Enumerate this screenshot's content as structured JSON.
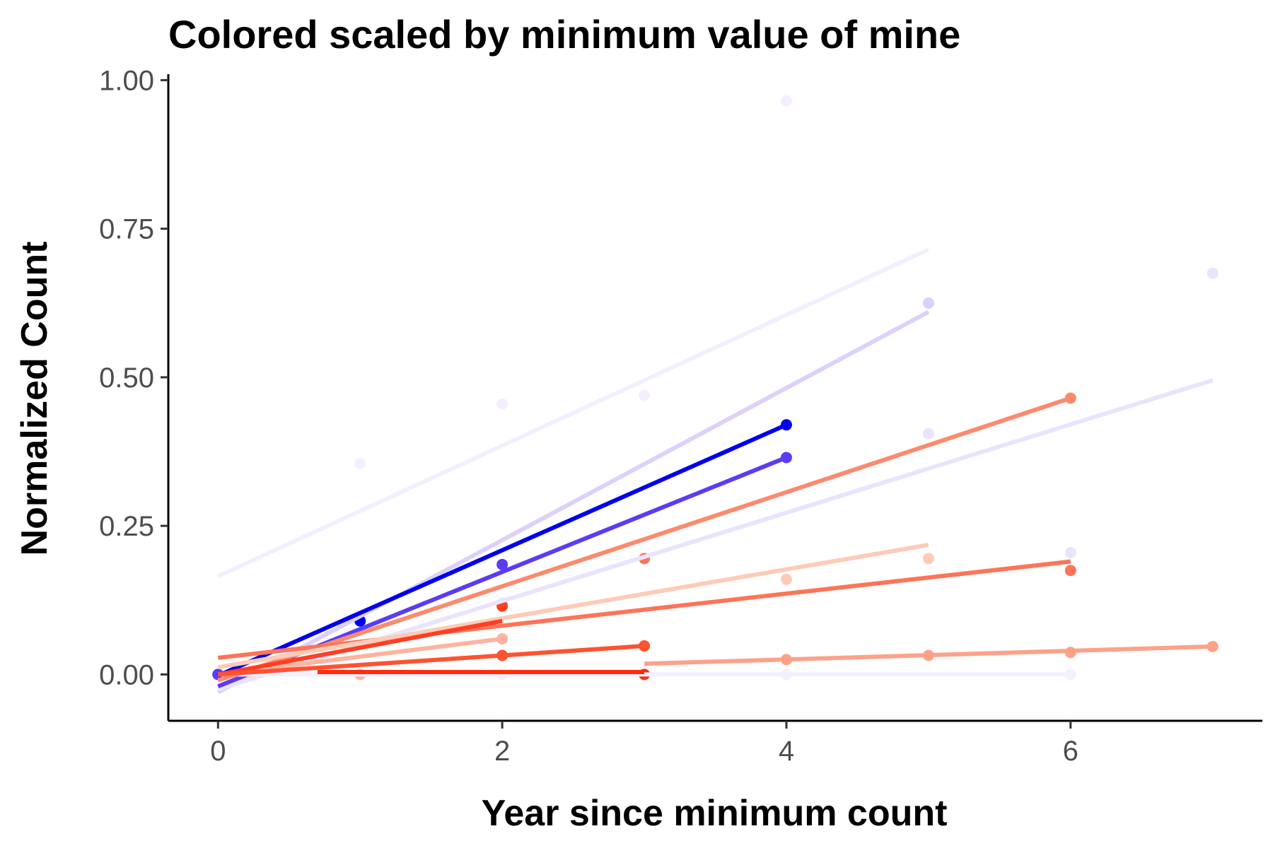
{
  "chart_data": {
    "type": "scatter",
    "title": "Colored scaled by minimum value of mine",
    "xlabel": "Year since minimum count",
    "ylabel": "Normalized Count",
    "xlim": [
      -0.35,
      7.35
    ],
    "ylim": [
      -0.078,
      1.01
    ],
    "x_ticks": [
      0,
      2,
      4,
      6
    ],
    "x_tick_labels": [
      "0",
      "2",
      "4",
      "6"
    ],
    "y_ticks": [
      0,
      0.25,
      0.5,
      0.75,
      1
    ],
    "y_tick_labels": [
      "0.00",
      "0.25",
      "0.50",
      "0.75",
      "1.00"
    ],
    "grid": false,
    "legend": "none",
    "series": [
      {
        "color": "#f4eeff",
        "points": [
          [
            1,
            0.355
          ],
          [
            2,
            0.455
          ],
          [
            3,
            0.47
          ],
          [
            4,
            0.965
          ]
        ],
        "fit": [
          [
            0,
            0.165
          ],
          [
            5,
            0.715
          ]
        ]
      },
      {
        "color": "#ddd0fb",
        "points": [
          [
            5,
            0.625
          ]
        ],
        "fit": [
          [
            0,
            -0.03
          ],
          [
            5,
            0.61
          ]
        ]
      },
      {
        "color": "#ebe3fd",
        "points": [
          [
            2,
            0.12
          ],
          [
            5,
            0.405
          ],
          [
            6,
            0.205
          ],
          [
            7,
            0.675
          ]
        ],
        "fit": [
          [
            0,
            -0.025
          ],
          [
            7,
            0.495
          ]
        ]
      },
      {
        "color": "#0000ee",
        "points": [
          [
            0,
            0.0
          ],
          [
            1,
            0.09
          ],
          [
            4,
            0.42
          ]
        ],
        "fit": [
          [
            0,
            -0.002
          ],
          [
            4,
            0.42
          ]
        ]
      },
      {
        "color": "#5b3cf4",
        "points": [
          [
            0,
            0.0
          ],
          [
            2,
            0.185
          ],
          [
            4,
            0.365
          ]
        ],
        "fit": [
          [
            0,
            -0.02
          ],
          [
            4,
            0.365
          ]
        ]
      },
      {
        "color": "#f4f0ff",
        "points": [
          [
            2,
            0.0
          ],
          [
            4,
            0.0
          ],
          [
            6,
            0.0
          ]
        ],
        "fit": [
          [
            0,
            0.0
          ],
          [
            6,
            0.0
          ]
        ]
      },
      {
        "color": "#fc8a6e",
        "points": [
          [
            6,
            0.465
          ]
        ],
        "fit": [
          [
            0,
            -0.01
          ],
          [
            6,
            0.465
          ]
        ]
      },
      {
        "color": "#fd7458",
        "points": [
          [
            3,
            0.195
          ],
          [
            6,
            0.175
          ]
        ],
        "fit": [
          [
            0,
            0.028
          ],
          [
            6,
            0.19
          ]
        ]
      },
      {
        "color": "#fecbb8",
        "points": [
          [
            4,
            0.16
          ],
          [
            5,
            0.195
          ]
        ],
        "fit": [
          [
            0,
            0.012
          ],
          [
            5,
            0.218
          ]
        ]
      },
      {
        "color": "#fdb49e",
        "points": [
          [
            1,
            0.0
          ],
          [
            2,
            0.06
          ]
        ],
        "fit": [
          [
            0,
            0.0
          ],
          [
            2,
            0.06
          ]
        ]
      },
      {
        "color": "#fe3f22",
        "points": [
          [
            2,
            0.115
          ]
        ],
        "fit": [
          [
            0,
            0.0
          ],
          [
            2,
            0.09
          ]
        ]
      },
      {
        "color": "#fe5232",
        "points": [
          [
            2,
            0.032
          ],
          [
            3,
            0.048
          ]
        ],
        "fit": [
          [
            0,
            0.0
          ],
          [
            3,
            0.048
          ]
        ]
      },
      {
        "color": "#fe2d0c",
        "points": [
          [
            3,
            0.0
          ]
        ],
        "fit": [
          [
            0.7,
            0.004
          ],
          [
            3,
            0.004
          ]
        ]
      },
      {
        "color": "#fda289",
        "points": [
          [
            4,
            0.025
          ],
          [
            5,
            0.032
          ],
          [
            6,
            0.037
          ],
          [
            7,
            0.047
          ]
        ],
        "fit": [
          [
            3,
            0.018
          ],
          [
            7,
            0.047
          ]
        ]
      }
    ]
  }
}
